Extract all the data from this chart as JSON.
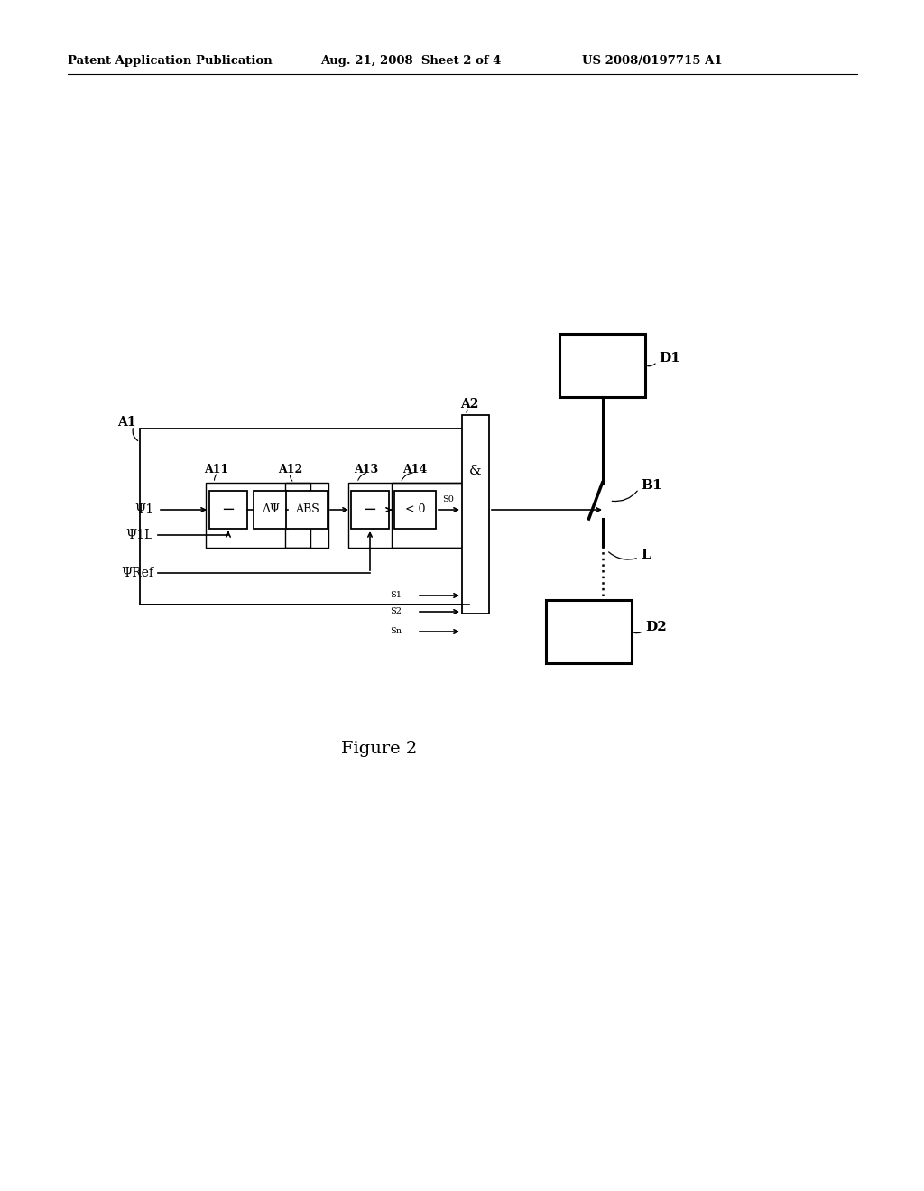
{
  "bg_color": "#ffffff",
  "header_left": "Patent Application Publication",
  "header_mid": "Aug. 21, 2008  Sheet 2 of 4",
  "header_right": "US 2008/0197715 A1",
  "figure_caption": "Figure 2"
}
